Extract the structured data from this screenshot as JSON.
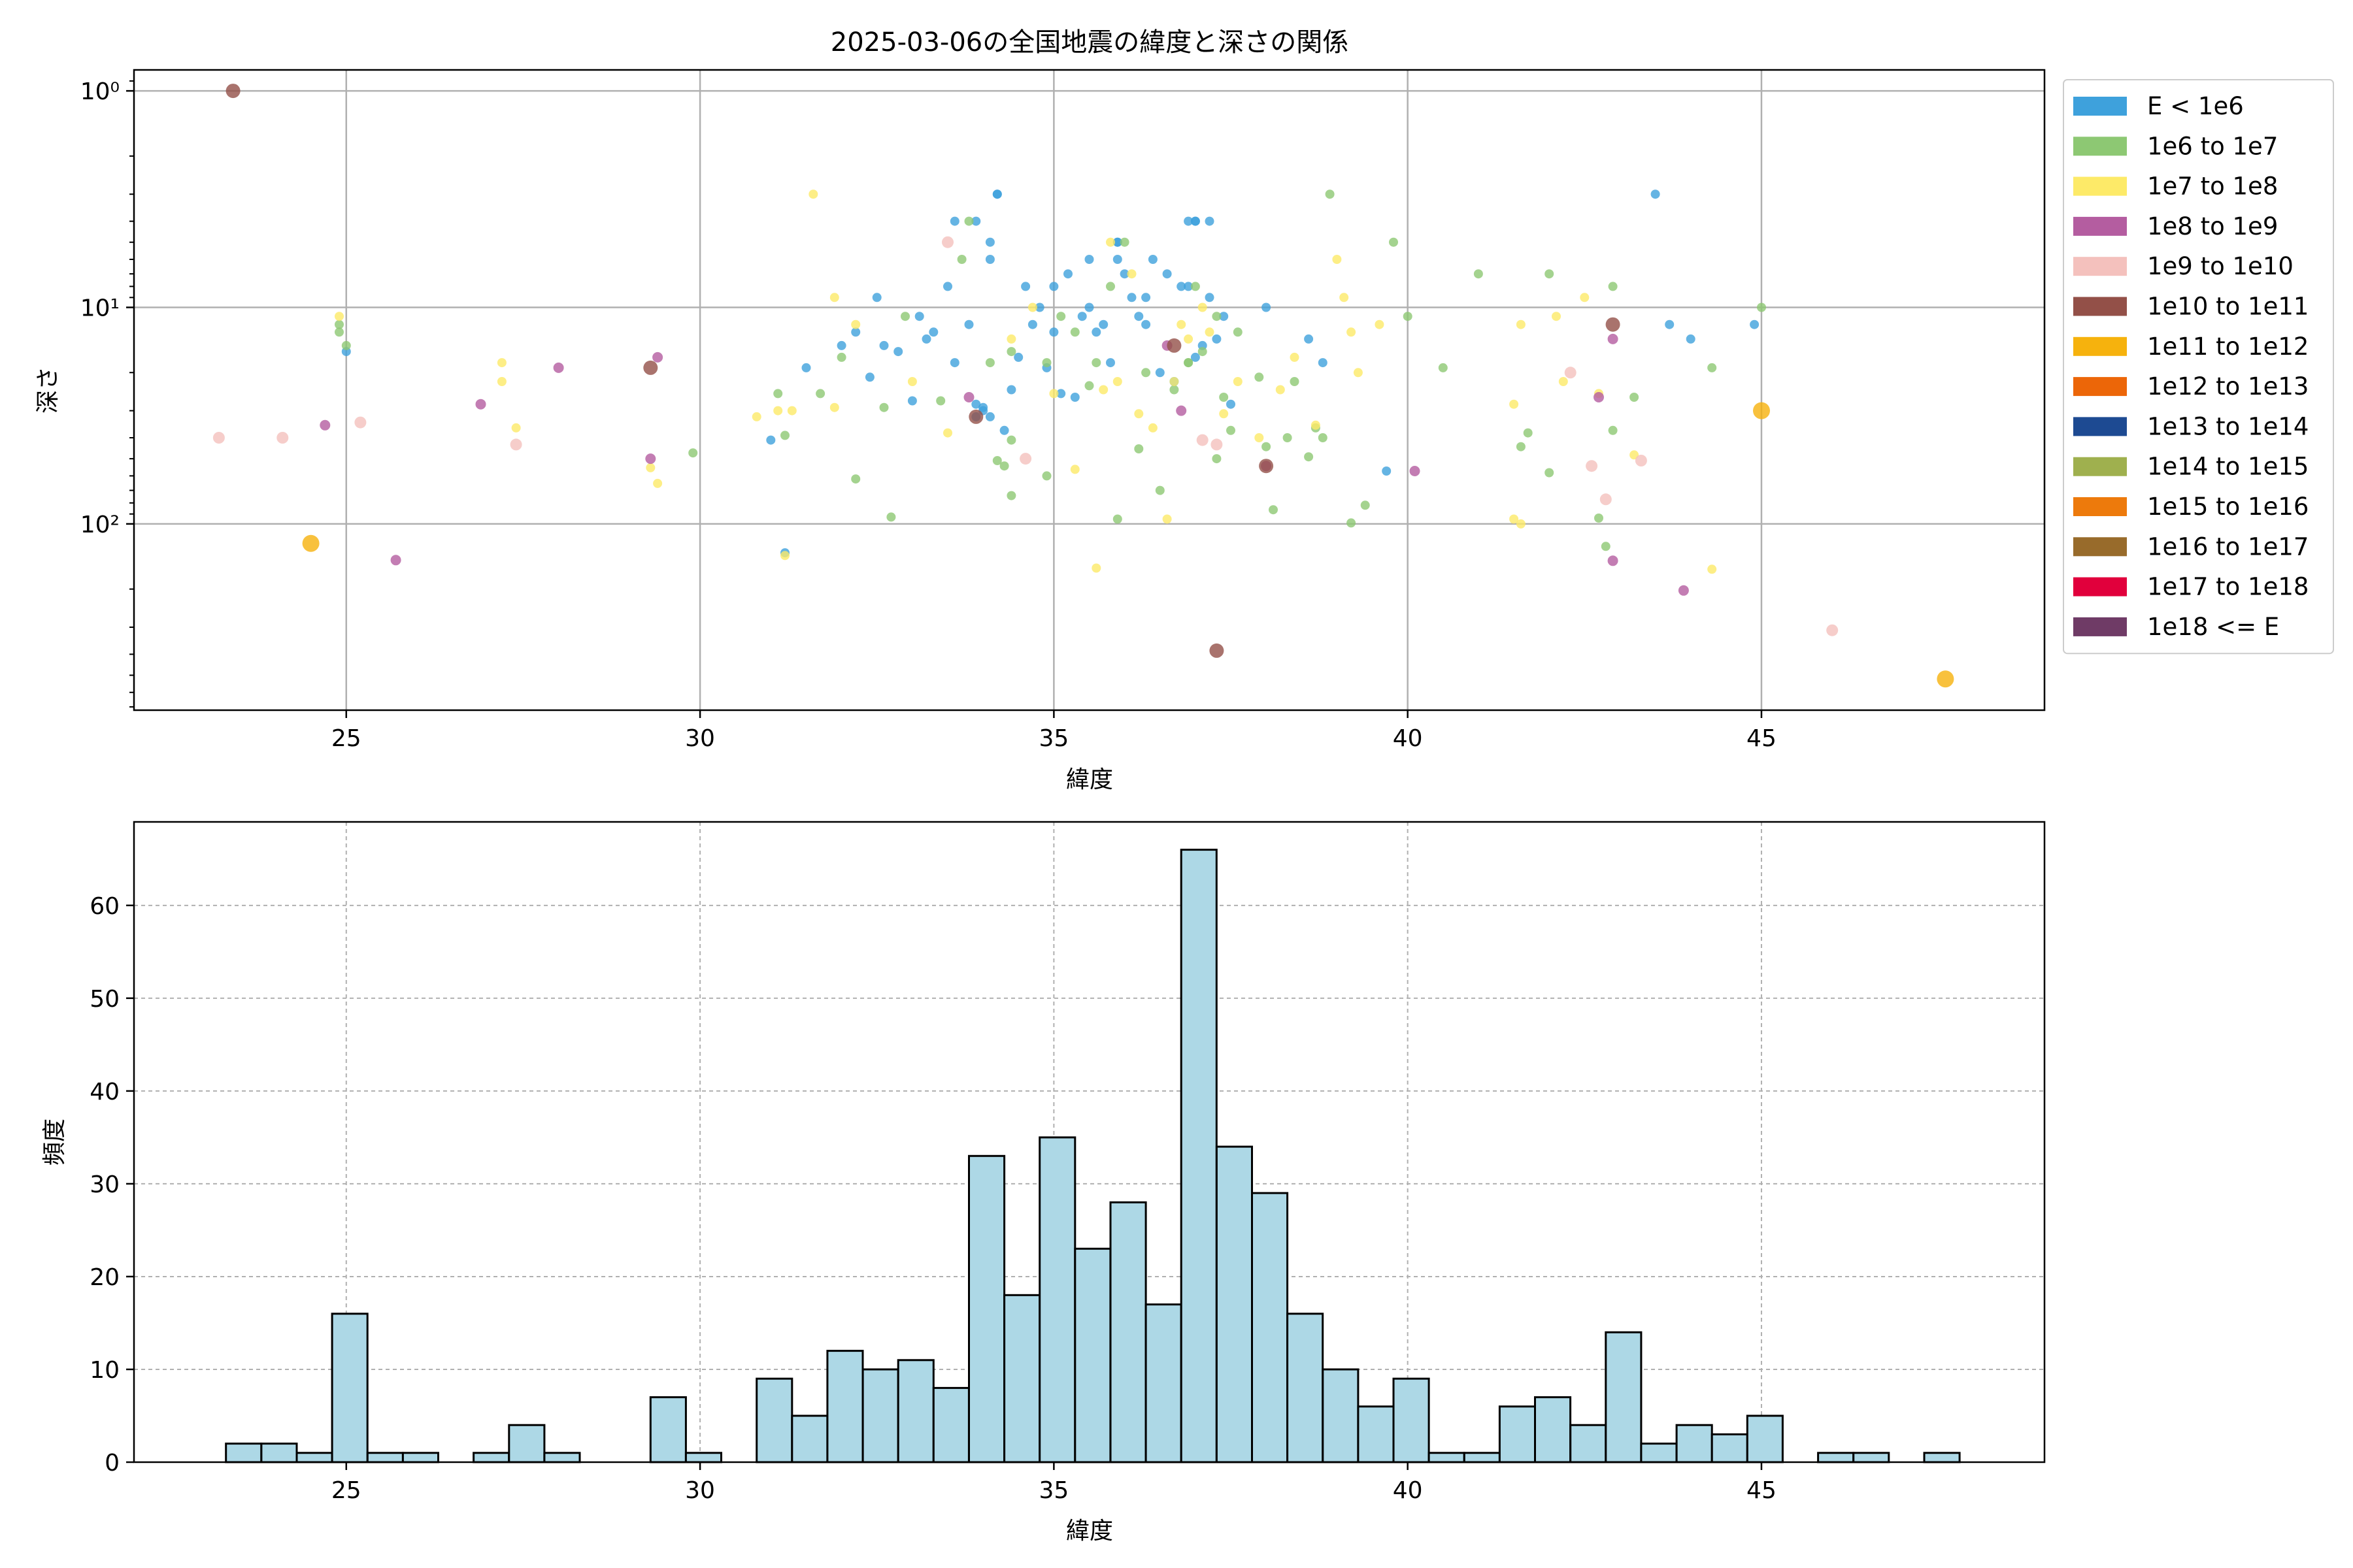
{
  "figure_title": "2025-03-06の全国地震の緯度と深さの関係",
  "chart_data": [
    {
      "type": "scatter",
      "title": "2025-03-06の全国地震の緯度と深さの関係",
      "xlabel": "緯度",
      "ylabel": "深さ",
      "xlim": [
        22,
        49
      ],
      "ylim": [
        0.8,
        725
      ],
      "y_scale": "log",
      "y_inverted": true,
      "grid": true,
      "xticks": [
        25,
        30,
        35,
        40,
        45
      ],
      "xtick_labels": [
        "25",
        "30",
        "35",
        "40",
        "45"
      ],
      "yticks": [
        1,
        10,
        100
      ],
      "ytick_labels": [
        "10⁰",
        "10¹",
        "10²"
      ],
      "legend_position": "outside-right",
      "legend": [
        {
          "label": "E < 1e6",
          "color": "#3ea1dc"
        },
        {
          "label": "1e6 to 1e7",
          "color": "#8dc873"
        },
        {
          "label": "1e7 to 1e8",
          "color": "#fdea68"
        },
        {
          "label": "1e8 to 1e9",
          "color": "#b45da0"
        },
        {
          "label": "1e9 to 1e10",
          "color": "#f4c1bd"
        },
        {
          "label": "1e10 to 1e11",
          "color": "#935048"
        },
        {
          "label": "1e11 to 1e12",
          "color": "#f6b20d"
        },
        {
          "label": "1e12 to 1e13",
          "color": "#ec6608"
        },
        {
          "label": "1e13 to 1e14",
          "color": "#1d4a92"
        },
        {
          "label": "1e14 to 1e15",
          "color": "#9fb04e"
        },
        {
          "label": "1e15 to 1e16",
          "color": "#ed7a0c"
        },
        {
          "label": "1e16 to 1e17",
          "color": "#986b2b"
        },
        {
          "label": "1e17 to 1e18",
          "color": "#e1003c"
        },
        {
          "label": "1e18 <= E",
          "color": "#6f3b66"
        }
      ],
      "series": [
        {
          "class": 0,
          "points": [
            [
              33.5,
              8
            ],
            [
              34.2,
              3
            ],
            [
              35.5,
              6
            ],
            [
              36.9,
              4
            ],
            [
              37.2,
              4
            ],
            [
              35.9,
              5
            ],
            [
              34.8,
              10
            ],
            [
              35.2,
              7
            ],
            [
              36.1,
              9
            ],
            [
              36.4,
              6
            ],
            [
              33.1,
              11
            ],
            [
              34.6,
              8
            ],
            [
              35.7,
              12
            ],
            [
              36.6,
              7
            ],
            [
              37.4,
              11
            ],
            [
              38.0,
              10
            ],
            [
              32.5,
              9
            ],
            [
              33.8,
              12
            ],
            [
              34.1,
              5
            ],
            [
              35.0,
              13
            ],
            [
              35.9,
              6
            ],
            [
              36.8,
              8
            ],
            [
              37.1,
              15
            ],
            [
              32.0,
              15
            ],
            [
              33.2,
              14
            ],
            [
              34.5,
              17
            ],
            [
              35.6,
              13
            ],
            [
              36.3,
              12
            ],
            [
              37.3,
              14
            ],
            [
              38.6,
              14
            ],
            [
              32.8,
              16
            ],
            [
              33.6,
              18
            ],
            [
              34.9,
              19
            ],
            [
              35.8,
              18
            ],
            [
              36.2,
              11
            ],
            [
              37.0,
              17
            ],
            [
              38.8,
              18
            ],
            [
              31.5,
              19
            ],
            [
              32.4,
              21
            ],
            [
              33.0,
              27
            ],
            [
              34.0,
              30
            ],
            [
              34.4,
              24
            ],
            [
              35.1,
              25
            ],
            [
              36.5,
              20
            ],
            [
              37.5,
              28
            ],
            [
              31.0,
              41
            ],
            [
              33.9,
              32
            ],
            [
              34.3,
              37
            ],
            [
              35.3,
              26
            ],
            [
              36.7,
              22
            ],
            [
              43.7,
              12
            ],
            [
              44.0,
              14
            ],
            [
              44.9,
              12
            ],
            [
              43.5,
              3
            ],
            [
              34.2,
              3
            ],
            [
              33.9,
              4
            ],
            [
              35.9,
              5
            ],
            [
              37.0,
              4
            ],
            [
              37.0,
              4
            ],
            [
              25.0,
              16
            ],
            [
              39.7,
              57
            ],
            [
              31.2,
              136
            ],
            [
              33.6,
              4
            ],
            [
              34.1,
              6
            ],
            [
              35.0,
              8
            ],
            [
              35.4,
              11
            ],
            [
              36.0,
              7
            ],
            [
              36.9,
              8
            ],
            [
              34.7,
              12
            ],
            [
              33.3,
              13
            ],
            [
              32.2,
              13
            ],
            [
              32.6,
              15
            ],
            [
              35.5,
              10
            ],
            [
              36.3,
              9
            ],
            [
              37.2,
              9
            ],
            [
              33.9,
              28
            ],
            [
              34.0,
              29
            ],
            [
              34.1,
              32
            ]
          ]
        },
        {
          "class": 1,
          "points": [
            [
              24.9,
              12
            ],
            [
              24.9,
              13
            ],
            [
              25.0,
              15
            ],
            [
              29.9,
              47
            ],
            [
              31.1,
              25
            ],
            [
              31.2,
              39
            ],
            [
              31.7,
              25
            ],
            [
              32.0,
              17
            ],
            [
              32.2,
              62
            ],
            [
              32.6,
              29
            ],
            [
              32.7,
              93
            ],
            [
              32.9,
              11
            ],
            [
              33.4,
              27
            ],
            [
              33.7,
              6
            ],
            [
              33.8,
              4
            ],
            [
              34.1,
              18
            ],
            [
              34.2,
              51
            ],
            [
              34.3,
              54
            ],
            [
              34.4,
              16
            ],
            [
              34.4,
              74
            ],
            [
              34.9,
              18
            ],
            [
              34.9,
              60
            ],
            [
              35.1,
              11
            ],
            [
              35.3,
              13
            ],
            [
              35.5,
              23
            ],
            [
              35.6,
              18
            ],
            [
              35.8,
              8
            ],
            [
              35.9,
              95
            ],
            [
              36.0,
              5
            ],
            [
              36.2,
              45
            ],
            [
              36.3,
              20
            ],
            [
              36.5,
              70
            ],
            [
              36.7,
              24
            ],
            [
              36.9,
              18
            ],
            [
              37.0,
              8
            ],
            [
              37.1,
              16
            ],
            [
              37.3,
              11
            ],
            [
              37.4,
              26
            ],
            [
              37.5,
              37
            ],
            [
              37.6,
              13
            ],
            [
              37.9,
              21
            ],
            [
              38.0,
              44
            ],
            [
              38.1,
              86
            ],
            [
              38.4,
              22
            ],
            [
              38.6,
              49
            ],
            [
              38.7,
              36
            ],
            [
              38.8,
              40
            ],
            [
              38.9,
              3
            ],
            [
              39.2,
              99
            ],
            [
              39.4,
              82
            ],
            [
              39.8,
              5
            ],
            [
              40.0,
              11
            ],
            [
              40.5,
              19
            ],
            [
              41.0,
              7
            ],
            [
              41.6,
              44
            ],
            [
              41.7,
              38
            ],
            [
              42.0,
              7
            ],
            [
              42.0,
              58
            ],
            [
              42.7,
              94
            ],
            [
              42.8,
              127
            ],
            [
              42.9,
              8
            ],
            [
              42.9,
              37
            ],
            [
              43.2,
              26
            ],
            [
              44.3,
              19
            ],
            [
              45.0,
              10
            ],
            [
              34.4,
              41
            ],
            [
              36.9,
              18
            ],
            [
              37.3,
              50
            ],
            [
              38.3,
              40
            ]
          ]
        },
        {
          "class": 2,
          "points": [
            [
              24.9,
              11
            ],
            [
              27.2,
              18
            ],
            [
              27.2,
              22
            ],
            [
              27.4,
              36
            ],
            [
              29.3,
              55
            ],
            [
              29.4,
              65
            ],
            [
              30.8,
              32
            ],
            [
              31.1,
              30
            ],
            [
              31.2,
              140
            ],
            [
              31.3,
              30
            ],
            [
              31.6,
              3
            ],
            [
              31.9,
              9
            ],
            [
              31.9,
              29
            ],
            [
              32.2,
              12
            ],
            [
              33.0,
              22
            ],
            [
              33.5,
              38
            ],
            [
              34.4,
              14
            ],
            [
              34.7,
              10
            ],
            [
              35.0,
              25
            ],
            [
              35.3,
              56
            ],
            [
              35.6,
              160
            ],
            [
              35.7,
              24
            ],
            [
              35.8,
              5
            ],
            [
              35.9,
              22
            ],
            [
              36.1,
              7
            ],
            [
              36.2,
              31
            ],
            [
              36.4,
              36
            ],
            [
              36.6,
              95
            ],
            [
              36.7,
              22
            ],
            [
              36.9,
              14
            ],
            [
              37.1,
              10
            ],
            [
              37.2,
              13
            ],
            [
              37.4,
              31
            ],
            [
              37.6,
              22
            ],
            [
              37.9,
              40
            ],
            [
              38.2,
              24
            ],
            [
              38.4,
              17
            ],
            [
              38.7,
              35
            ],
            [
              39.0,
              6
            ],
            [
              39.1,
              9
            ],
            [
              39.2,
              13
            ],
            [
              39.3,
              20
            ],
            [
              39.6,
              12
            ],
            [
              41.5,
              28
            ],
            [
              41.6,
              12
            ],
            [
              41.5,
              95
            ],
            [
              41.6,
              100
            ],
            [
              42.1,
              11
            ],
            [
              42.2,
              22
            ],
            [
              42.5,
              9
            ],
            [
              42.7,
              25
            ],
            [
              43.2,
              48
            ],
            [
              44.3,
              162
            ],
            [
              36.8,
              12
            ]
          ]
        },
        {
          "class": 3,
          "points": [
            [
              24.7,
              35
            ],
            [
              25.7,
              147
            ],
            [
              26.9,
              28
            ],
            [
              28.0,
              19
            ],
            [
              29.3,
              50
            ],
            [
              29.4,
              17
            ],
            [
              33.8,
              26
            ],
            [
              36.8,
              30
            ],
            [
              38.0,
              54
            ],
            [
              40.1,
              57
            ],
            [
              42.7,
              26
            ],
            [
              42.9,
              14
            ],
            [
              42.9,
              148
            ],
            [
              43.9,
              203
            ],
            [
              36.6,
              15
            ]
          ]
        },
        {
          "class": 4,
          "points": [
            [
              23.2,
              40
            ],
            [
              24.1,
              40
            ],
            [
              25.2,
              34
            ],
            [
              27.4,
              43
            ],
            [
              33.5,
              5
            ],
            [
              34.6,
              50
            ],
            [
              37.1,
              41
            ],
            [
              37.3,
              43
            ],
            [
              42.3,
              20
            ],
            [
              42.6,
              54
            ],
            [
              42.8,
              77
            ],
            [
              43.3,
              51
            ],
            [
              46.0,
              310
            ]
          ]
        },
        {
          "class": 5,
          "points": [
            [
              23.4,
              1
            ],
            [
              29.3,
              19
            ],
            [
              33.9,
              32
            ],
            [
              36.7,
              15
            ],
            [
              37.3,
              385
            ],
            [
              38.0,
              54
            ],
            [
              42.9,
              12
            ]
          ]
        },
        {
          "class": 6,
          "points": [
            [
              24.5,
              123
            ],
            [
              45.0,
              30
            ],
            [
              47.6,
              520
            ]
          ]
        }
      ]
    },
    {
      "type": "bar",
      "subtype": "histogram",
      "xlabel": "緯度",
      "ylabel": "頻度",
      "xlim": [
        22,
        49
      ],
      "ylim": [
        0,
        69
      ],
      "grid": true,
      "grid_style": "dashed",
      "bar_color": "#add8e6",
      "edge_color": "#000000",
      "xticks": [
        25,
        30,
        35,
        40,
        45
      ],
      "xtick_labels": [
        "25",
        "30",
        "35",
        "40",
        "45"
      ],
      "yticks": [
        0,
        10,
        20,
        30,
        40,
        50,
        60
      ],
      "ytick_labels": [
        "0",
        "10",
        "20",
        "30",
        "40",
        "50",
        "60"
      ],
      "bin_start": 23.3,
      "bin_width": 0.5,
      "values": [
        2,
        2,
        1,
        16,
        1,
        1,
        0,
        1,
        4,
        1,
        0,
        0,
        7,
        1,
        0,
        9,
        5,
        12,
        10,
        11,
        8,
        33,
        18,
        35,
        23,
        28,
        17,
        66,
        34,
        29,
        16,
        10,
        6,
        9,
        1,
        1,
        6,
        7,
        4,
        14,
        2,
        4,
        3,
        5,
        0,
        1,
        1,
        0,
        1
      ]
    }
  ]
}
